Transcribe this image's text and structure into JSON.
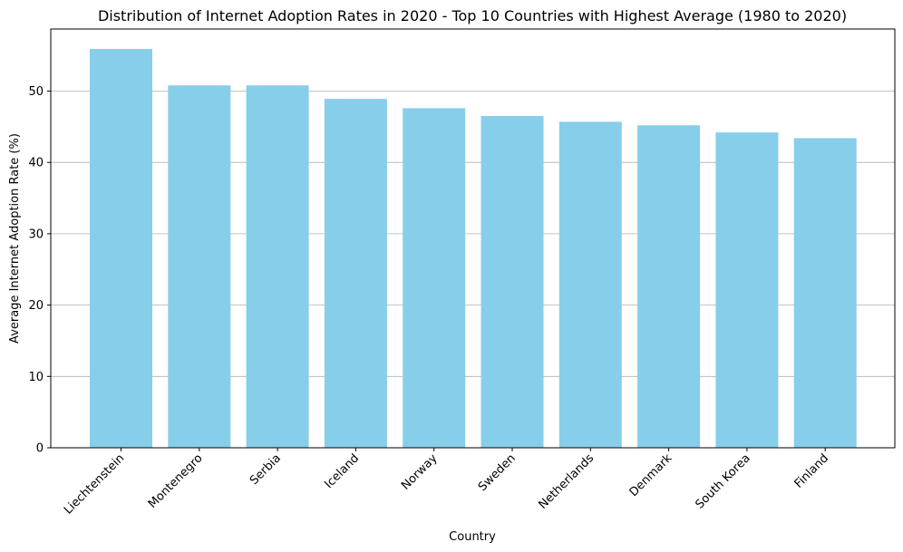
{
  "chart_data": {
    "type": "bar",
    "title": "Distribution of Internet Adoption Rates in 2020 - Top 10 Countries with Highest Average (1980 to 2020)",
    "xlabel": "Country",
    "ylabel": "Average Internet Adoption Rate (%)",
    "categories": [
      "Liechtenstein",
      "Montenegro",
      "Serbia",
      "Iceland",
      "Norway",
      "Sweden",
      "Netherlands",
      "Denmark",
      "South Korea",
      "Finland"
    ],
    "values": [
      55.9,
      50.8,
      50.8,
      48.9,
      47.6,
      46.5,
      45.7,
      45.2,
      44.2,
      43.4
    ],
    "ylim": [
      0,
      58.7
    ],
    "yticks": [
      0,
      10,
      20,
      30,
      40,
      50
    ],
    "grid": "y",
    "bar_color": "#87CEEB"
  }
}
